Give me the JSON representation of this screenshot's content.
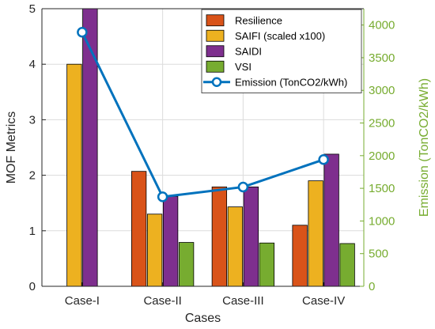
{
  "chart_data": {
    "type": "bar",
    "categories": [
      "Case-I",
      "Case-II",
      "Case-III",
      "Case-IV"
    ],
    "xlabel": "Cases",
    "ylabel": "MOF Metrics",
    "ylabel_right": "Emission (TonCO2/kWh)",
    "ylim": [
      0,
      5
    ],
    "ylim_right": [
      0,
      4250
    ],
    "yticks": [
      0,
      1,
      2,
      3,
      4,
      5
    ],
    "yticks_right": [
      0,
      500,
      1000,
      1500,
      2000,
      2500,
      3000,
      3500,
      4000
    ],
    "grid": true,
    "legend_position": "top-right",
    "series": [
      {
        "name": "Resilience",
        "type": "bar",
        "axis": "left",
        "color": "#d95319",
        "values": [
          0,
          2.07,
          1.79,
          1.1
        ]
      },
      {
        "name": "SAIFI (scaled x100)",
        "type": "bar",
        "axis": "left",
        "color": "#edb120",
        "values": [
          4.0,
          1.3,
          1.43,
          1.9
        ]
      },
      {
        "name": "SAIDI",
        "type": "bar",
        "axis": "left",
        "color": "#7e2f8e",
        "values": [
          5.0,
          1.62,
          1.79,
          2.38
        ]
      },
      {
        "name": "VSI",
        "type": "bar",
        "axis": "left",
        "color": "#77ac30",
        "values": [
          0,
          0.79,
          0.78,
          0.77
        ]
      },
      {
        "name": "Emission (TonCO2/kWh)",
        "type": "line",
        "axis": "right",
        "color": "#0072bd",
        "marker": "circle",
        "values": [
          3890,
          1370,
          1520,
          1940
        ]
      }
    ]
  }
}
